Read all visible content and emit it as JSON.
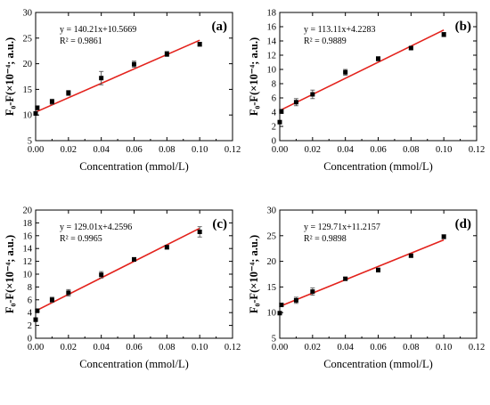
{
  "colors": {
    "fit_line": "#e3221c",
    "marker": "#000000",
    "axis": "#000000"
  },
  "chart_data": [
    {
      "type": "scatter",
      "panel_label": "(a)",
      "equation": "y = 140.21x+10.5669",
      "r2": "R² = 0.9861",
      "xlabel": "Concentration (mmol/L)",
      "ylabel": "F₀-F(×10⁻⁴; a.u.)",
      "xlim": [
        0,
        0.12
      ],
      "ylim": [
        5,
        30
      ],
      "xticks": [
        "0.00",
        "0.02",
        "0.04",
        "0.06",
        "0.08",
        "0.10",
        "0.12"
      ],
      "yticks": [
        "5",
        "10",
        "15",
        "20",
        "25",
        "30"
      ],
      "points": [
        {
          "x": 0.0,
          "y": 10.3,
          "err": 0.3
        },
        {
          "x": 0.001,
          "y": 11.4,
          "err": 0.4
        },
        {
          "x": 0.01,
          "y": 12.6,
          "err": 0.5
        },
        {
          "x": 0.02,
          "y": 14.3,
          "err": 0.5
        },
        {
          "x": 0.04,
          "y": 17.2,
          "err": 1.3
        },
        {
          "x": 0.06,
          "y": 19.9,
          "err": 0.6
        },
        {
          "x": 0.08,
          "y": 21.9,
          "err": 0.5
        },
        {
          "x": 0.1,
          "y": 23.8,
          "err": 0.4
        }
      ],
      "fit": {
        "slope": 140.21,
        "intercept": 10.5669,
        "x_range": [
          0,
          0.1
        ]
      }
    },
    {
      "type": "scatter",
      "panel_label": "(b)",
      "equation": "y = 113.11x+4.2283",
      "r2": "R² = 0.9889",
      "xlabel": "Concentration (mmol/L)",
      "ylabel": "F₀-F(×10⁻⁴; a.u.)",
      "xlim": [
        0,
        0.12
      ],
      "ylim": [
        0,
        18
      ],
      "xticks": [
        "0.00",
        "0.02",
        "0.04",
        "0.06",
        "0.08",
        "0.10",
        "0.12"
      ],
      "yticks": [
        "0",
        "2",
        "4",
        "6",
        "8",
        "10",
        "12",
        "14",
        "16",
        "18"
      ],
      "points": [
        {
          "x": 0.0,
          "y": 2.6,
          "err": 0.2
        },
        {
          "x": 0.001,
          "y": 4.1,
          "err": 0.3
        },
        {
          "x": 0.01,
          "y": 5.4,
          "err": 0.5
        },
        {
          "x": 0.02,
          "y": 6.5,
          "err": 0.6
        },
        {
          "x": 0.04,
          "y": 9.6,
          "err": 0.4
        },
        {
          "x": 0.06,
          "y": 11.5,
          "err": 0.3
        },
        {
          "x": 0.08,
          "y": 13.0,
          "err": 0.2
        },
        {
          "x": 0.1,
          "y": 14.9,
          "err": 0.3
        }
      ],
      "fit": {
        "slope": 113.11,
        "intercept": 4.2283,
        "x_range": [
          0,
          0.1
        ]
      }
    },
    {
      "type": "scatter",
      "panel_label": "(c)",
      "equation": "y = 129.01x+4.2596",
      "r2": "R² = 0.9965",
      "xlabel": "Concentration (mmol/L)",
      "ylabel": "F₀-F(×10⁻⁴; a.u.)",
      "xlim": [
        0,
        0.12
      ],
      "ylim": [
        0,
        20
      ],
      "xticks": [
        "0.00",
        "0.02",
        "0.04",
        "0.06",
        "0.08",
        "0.10",
        "0.12"
      ],
      "yticks": [
        "0",
        "2",
        "4",
        "6",
        "8",
        "10",
        "12",
        "14",
        "16",
        "18",
        "20"
      ],
      "points": [
        {
          "x": 0.0,
          "y": 2.9,
          "err": 0.3
        },
        {
          "x": 0.001,
          "y": 4.3,
          "err": 0.2
        },
        {
          "x": 0.01,
          "y": 6.0,
          "err": 0.4
        },
        {
          "x": 0.02,
          "y": 7.1,
          "err": 0.5
        },
        {
          "x": 0.04,
          "y": 9.9,
          "err": 0.5
        },
        {
          "x": 0.06,
          "y": 12.3,
          "err": 0.3
        },
        {
          "x": 0.08,
          "y": 14.2,
          "err": 0.3
        },
        {
          "x": 0.1,
          "y": 16.6,
          "err": 0.8
        }
      ],
      "fit": {
        "slope": 129.01,
        "intercept": 4.2596,
        "x_range": [
          0,
          0.1
        ]
      }
    },
    {
      "type": "scatter",
      "panel_label": "(d)",
      "equation": "y = 129.71x+11.2157",
      "r2": "R² = 0.9898",
      "xlabel": "Concentration (mmol/L)",
      "ylabel": "F₀-F(×10⁻⁴; a.u.)",
      "xlim": [
        0,
        0.12
      ],
      "ylim": [
        5,
        30
      ],
      "xticks": [
        "0.00",
        "0.02",
        "0.04",
        "0.06",
        "0.08",
        "0.10",
        "0.12"
      ],
      "yticks": [
        "5",
        "10",
        "15",
        "20",
        "25",
        "30"
      ],
      "points": [
        {
          "x": 0.0,
          "y": 9.9,
          "err": 0.3
        },
        {
          "x": 0.001,
          "y": 11.5,
          "err": 0.3
        },
        {
          "x": 0.01,
          "y": 12.4,
          "err": 0.6
        },
        {
          "x": 0.02,
          "y": 14.1,
          "err": 0.7
        },
        {
          "x": 0.04,
          "y": 16.6,
          "err": 0.3
        },
        {
          "x": 0.06,
          "y": 18.3,
          "err": 0.4
        },
        {
          "x": 0.08,
          "y": 21.1,
          "err": 0.3
        },
        {
          "x": 0.1,
          "y": 24.8,
          "err": 0.4
        }
      ],
      "fit": {
        "slope": 129.71,
        "intercept": 11.2157,
        "x_range": [
          0,
          0.1
        ]
      }
    }
  ]
}
